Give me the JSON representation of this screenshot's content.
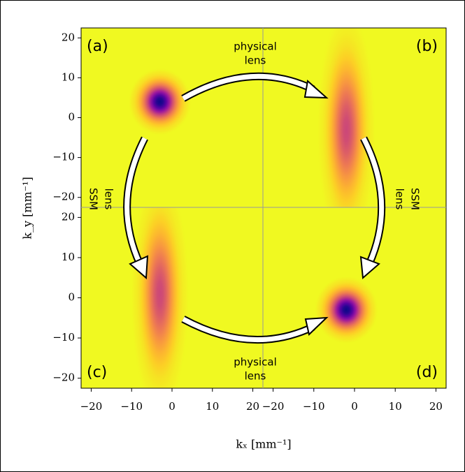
{
  "chart_data": [
    {
      "type": "heatmap",
      "label": "(a)",
      "xlim": [
        -22.5,
        22.5
      ],
      "ylim": [
        -22.5,
        22.5
      ],
      "yticks": [
        20,
        10,
        0,
        {
          "value": -10,
          "label": "−10"
        },
        {
          "value": -20,
          "label": "−20"
        }
      ],
      "spot": {
        "x": -3,
        "y": 4,
        "sx": 2.6,
        "sy": 2.8,
        "peak": 1
      }
    },
    {
      "type": "heatmap",
      "label": "(b)",
      "xlim": [
        -22.5,
        22.5
      ],
      "ylim": [
        -22.5,
        22.5
      ],
      "spot": {
        "x": -2,
        "y": -3,
        "sx": 2.4,
        "sy": 10,
        "peak": 0.5
      }
    },
    {
      "type": "heatmap",
      "label": "(c)",
      "xlim": [
        -22.5,
        22.5
      ],
      "ylim": [
        -22.5,
        22.5
      ],
      "xticks": [
        {
          "value": -20,
          "label": "−20"
        },
        {
          "value": -10,
          "label": "−10"
        },
        0,
        10,
        20
      ],
      "yticks": [
        20,
        10,
        0,
        {
          "value": -10,
          "label": "−10"
        },
        {
          "value": -20,
          "label": "−20"
        }
      ],
      "spot": {
        "x": -3,
        "y": 1,
        "sx": 2.4,
        "sy": 10,
        "peak": 0.5
      }
    },
    {
      "type": "heatmap",
      "label": "(d)",
      "xlim": [
        -22.5,
        22.5
      ],
      "ylim": [
        -22.5,
        22.5
      ],
      "xticks": [
        {
          "value": -20,
          "label": "−20"
        },
        {
          "value": -10,
          "label": "−10"
        },
        0,
        10,
        20
      ],
      "spot": {
        "x": -2,
        "y": -3,
        "sx": 2.6,
        "sy": 2.8,
        "peak": 1
      }
    }
  ],
  "figure": {
    "xlabel": "kₓ [mm⁻¹]",
    "ylabel": "k_y [mm⁻¹]",
    "annotations": [
      [
        "physical",
        "lens"
      ],
      [
        "SSM",
        "lens"
      ],
      [
        "SSM",
        "lens"
      ],
      [
        "physical",
        "lens"
      ]
    ]
  }
}
